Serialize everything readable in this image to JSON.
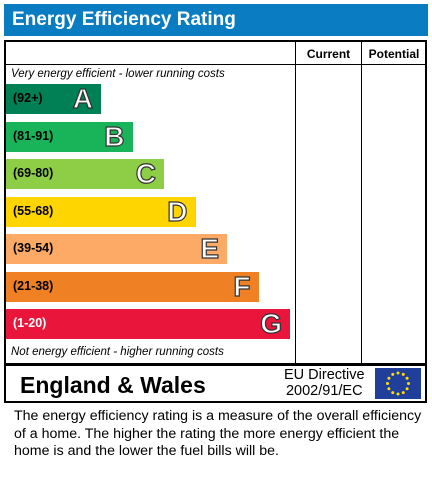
{
  "title": "Energy Efficiency Rating",
  "columns": {
    "current": "Current",
    "potential": "Potential"
  },
  "top_caption": "Very energy efficient - lower running costs",
  "bottom_caption": "Not energy efficient - higher running costs",
  "chart_data": {
    "type": "bar",
    "categories": [
      "A",
      "B",
      "C",
      "D",
      "E",
      "F",
      "G"
    ],
    "ranges": [
      "(92+)",
      "(81-91)",
      "(69-80)",
      "(55-68)",
      "(39-54)",
      "(21-38)",
      "(1-20)"
    ],
    "colors": [
      "#008054",
      "#19b459",
      "#8dce46",
      "#ffd500",
      "#fcaa65",
      "#ef8023",
      "#e9153b"
    ],
    "current": null,
    "potential": null
  },
  "footer": {
    "region": "England & Wales",
    "directive_line1": "EU Directive",
    "directive_line2": "2002/91/EC",
    "flag_icon": "eu-flag-icon"
  },
  "note": "The energy efficiency rating is a measure of the overall efficiency of a home.  The higher the rating the more energy efficient the home is and the lower the fuel bills will be."
}
